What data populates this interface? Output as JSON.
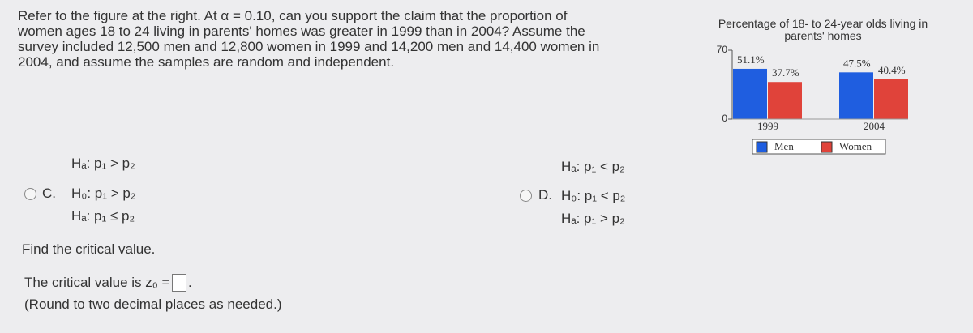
{
  "question": "Refer to the figure at the right. At α = 0.10, can you support the claim that the proportion of women ages 18 to 24 living in parents' homes was greater in 1999 than in 2004? Assume the survey included 12,500 men and 12,800 women in 1999 and 14,200 men and 14,400 women in 2004, and assume the samples are random and independent.",
  "options_above": [
    "Hₐ: p₁ > p₂",
    "Hₐ: p₁ < p₂"
  ],
  "options": [
    {
      "letter": "C.",
      "h0": "H₀: p₁ > p₂",
      "ha": "Hₐ: p₁ ≤ p₂"
    },
    {
      "letter": "D.",
      "h0": "H₀: p₁ < p₂",
      "ha": "Hₐ: p₁ > p₂"
    }
  ],
  "prompt": "Find the critical value.",
  "answer_prefix": "The critical value is z₀ =",
  "answer_suffix": ".",
  "hint": "(Round to two decimal places as needed.)",
  "chart_data": {
    "type": "bar",
    "title": "Percentage of 18- to 24-year olds living in parents' homes",
    "categories": [
      "1999",
      "2004"
    ],
    "series": [
      {
        "name": "Men",
        "color": "#1f5ee0",
        "values": [
          51.1,
          47.5
        ],
        "value_labels": [
          "51.1%",
          "47.5%"
        ]
      },
      {
        "name": "Women",
        "color": "#e0433a",
        "values": [
          37.7,
          40.4
        ],
        "value_labels": [
          "37.7%",
          "40.4%"
        ]
      }
    ],
    "ylim": [
      0,
      70
    ],
    "yticks": [
      0,
      70
    ]
  }
}
